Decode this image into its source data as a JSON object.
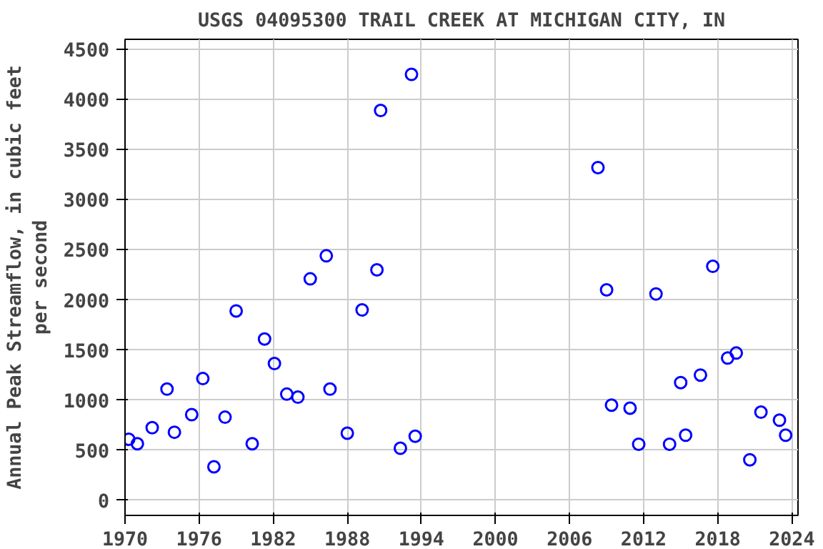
{
  "chart_data": {
    "type": "scatter",
    "title": "USGS 04095300 TRAIL CREEK AT MICHIGAN CITY, IN",
    "ylabel": "Annual Peak Streamflow, in cubic feet\nper second",
    "x": [
      1970.3,
      1971.0,
      1972.2,
      1973.4,
      1974.0,
      1975.4,
      1976.3,
      1977.2,
      1978.1,
      1979.0,
      1980.3,
      1981.3,
      1982.1,
      1983.1,
      1984.0,
      1985.0,
      1986.3,
      1986.6,
      1988.0,
      1989.2,
      1990.4,
      1990.7,
      1992.3,
      1993.2,
      1993.5,
      2008.3,
      2009.0,
      2009.4,
      2010.9,
      2011.6,
      2013.0,
      2014.1,
      2015.0,
      2015.4,
      2016.6,
      2017.6,
      2018.8,
      2019.5,
      2020.6,
      2021.5,
      2023.0,
      2023.5
    ],
    "series": [
      {
        "color": "#0000ff",
        "values": [
          610,
          565,
          725,
          1110,
          680,
          855,
          1215,
          335,
          830,
          1890,
          565,
          1610,
          1365,
          1060,
          1030,
          2210,
          2440,
          1110,
          670,
          1900,
          2300,
          3890,
          520,
          4250,
          640,
          3320,
          2100,
          950,
          920,
          560,
          2060,
          560,
          1175,
          650,
          1250,
          2335,
          1420,
          1470,
          405,
          880,
          800,
          650
        ]
      }
    ],
    "xlim": [
      1970,
      2024.5
    ],
    "ylim": [
      -150,
      4600
    ],
    "xticks": [
      1970,
      1976,
      1982,
      1988,
      1994,
      2000,
      2006,
      2012,
      2018,
      2024
    ],
    "yticks": [
      0,
      500,
      1000,
      1500,
      2000,
      2500,
      3000,
      3500,
      4000,
      4500
    ],
    "grid": true,
    "marker": "circle"
  }
}
